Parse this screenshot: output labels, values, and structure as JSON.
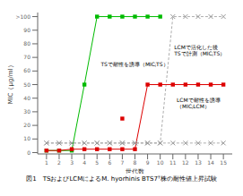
{
  "chart_data": {
    "type": "line",
    "title": "図1　TSおよびLCMによるM. hyorhinis BTS7ᵀ株の耐性値上昇試験",
    "xlabel": "世代数",
    "ylabel": "MIC（μg/ml）",
    "x": [
      1,
      2,
      3,
      4,
      5,
      6,
      7,
      8,
      9,
      10,
      11,
      12,
      13,
      14,
      15
    ],
    "xlim": [
      0.3,
      15.7
    ],
    "xticks": [
      1,
      2,
      3,
      4,
      5,
      6,
      7,
      8,
      9,
      10,
      11,
      12,
      13,
      14,
      15
    ],
    "ylim": [
      -1,
      103
    ],
    "yticks": [
      0,
      10,
      20,
      30,
      40,
      50,
      60,
      70,
      80,
      90,
      {
        "value": 100,
        "label": ">100"
      }
    ],
    "grid": false,
    "series": [
      {
        "color": "#999999",
        "marker": "x",
        "line_style": "dashed",
        "values": [
          7,
          7,
          7,
          7,
          7,
          7,
          7,
          7,
          7,
          7,
          7,
          7,
          7,
          7,
          7
        ]
      },
      {
        "color": "#999999",
        "marker": "x",
        "line_style": "dashed",
        "values": [
          7,
          7,
          7,
          7,
          7,
          7,
          7,
          7,
          7,
          7,
          100,
          100,
          100,
          100,
          100
        ]
      },
      {
        "color": "#00bb00",
        "marker": "square",
        "line_style": "solid",
        "values": [
          1.5,
          1.5,
          1.5,
          50,
          100,
          100,
          100,
          100,
          100,
          100,
          null,
          null,
          null,
          null,
          null
        ]
      },
      {
        "color": "#dd0000",
        "marker": "square",
        "line_style": "solid",
        "values": [
          1.5,
          1.5,
          2.5,
          2.5,
          2.5,
          2.5,
          2.5,
          2.5,
          50,
          50,
          50,
          50,
          50,
          50,
          50
        ]
      },
      {
        "color": "#dd0000",
        "marker": "square",
        "line_style": "none",
        "values": [
          null,
          null,
          null,
          null,
          null,
          null,
          25,
          null,
          null,
          null,
          null,
          null,
          null,
          null,
          null
        ]
      }
    ],
    "annotations": [
      {
        "text": "TSで耐性を誘導（MICⱼTS）",
        "x": 5.3,
        "y": 65
      },
      {
        "text": "LCMで活化した後\nTSで計測（MICⱼTS）",
        "x": 11.1,
        "y": 75
      },
      {
        "text": "LCMで耐性を誘導\n（MICⱼLCM）",
        "x": 11.3,
        "y": 36
      }
    ]
  }
}
